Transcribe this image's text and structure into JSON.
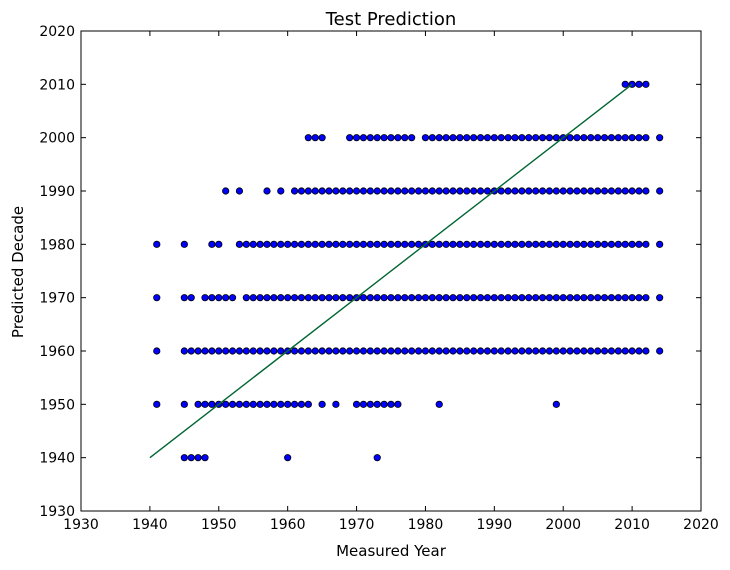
{
  "chart_data": {
    "type": "scatter",
    "title": "Test Prediction",
    "xlabel": "Measured Year",
    "ylabel": "Predicted Decade",
    "xlim": [
      1930,
      2020
    ],
    "ylim": [
      1930,
      2020
    ],
    "xticks": [
      1930,
      1940,
      1950,
      1960,
      1970,
      1980,
      1990,
      2000,
      2010,
      2020
    ],
    "yticks": [
      1930,
      1940,
      1950,
      1960,
      1970,
      1980,
      1990,
      2000,
      2010,
      2020
    ],
    "grid": false,
    "marker_color": "#0000ff",
    "line_color": "#006633",
    "series": [
      {
        "type": "scatter",
        "points_by_decade": {
          "1940": [
            1945,
            1946,
            1947,
            1948,
            1960,
            1973
          ],
          "1950": [
            1941,
            1945,
            1947,
            1948,
            1949,
            1950,
            1951,
            1952,
            1953,
            1954,
            1955,
            1956,
            1957,
            1958,
            1959,
            1960,
            1961,
            1962,
            1963,
            1965,
            1967,
            1970,
            1971,
            1972,
            1973,
            1974,
            1975,
            1976,
            1982,
            1999
          ],
          "1960": [
            1941,
            1945,
            1946,
            1947,
            1948,
            1949,
            1950,
            1951,
            1952,
            1953,
            1954,
            1955,
            1956,
            1957,
            1958,
            1959,
            1960,
            1961,
            1962,
            1963,
            1964,
            1965,
            1966,
            1967,
            1968,
            1969,
            1970,
            1971,
            1972,
            1973,
            1974,
            1975,
            1976,
            1977,
            1978,
            1979,
            1980,
            1981,
            1982,
            1983,
            1984,
            1985,
            1986,
            1987,
            1988,
            1989,
            1990,
            1991,
            1992,
            1993,
            1994,
            1995,
            1996,
            1997,
            1998,
            1999,
            2000,
            2001,
            2002,
            2003,
            2004,
            2005,
            2006,
            2007,
            2008,
            2009,
            2010,
            2011,
            2012,
            2014
          ],
          "1970": [
            1941,
            1945,
            1946,
            1948,
            1949,
            1950,
            1951,
            1952,
            1954,
            1955,
            1956,
            1957,
            1958,
            1959,
            1960,
            1961,
            1962,
            1963,
            1964,
            1965,
            1966,
            1967,
            1968,
            1969,
            1970,
            1971,
            1972,
            1973,
            1974,
            1975,
            1976,
            1977,
            1978,
            1979,
            1980,
            1981,
            1982,
            1983,
            1984,
            1985,
            1986,
            1987,
            1988,
            1989,
            1990,
            1991,
            1992,
            1993,
            1994,
            1995,
            1996,
            1997,
            1998,
            1999,
            2000,
            2001,
            2002,
            2003,
            2004,
            2005,
            2006,
            2007,
            2008,
            2009,
            2010,
            2011,
            2012,
            2014
          ],
          "1980": [
            1941,
            1945,
            1949,
            1950,
            1953,
            1954,
            1955,
            1956,
            1957,
            1958,
            1959,
            1960,
            1961,
            1962,
            1963,
            1964,
            1965,
            1966,
            1967,
            1968,
            1969,
            1970,
            1971,
            1972,
            1973,
            1974,
            1975,
            1976,
            1977,
            1978,
            1979,
            1980,
            1981,
            1982,
            1983,
            1984,
            1985,
            1986,
            1987,
            1988,
            1989,
            1990,
            1991,
            1992,
            1993,
            1994,
            1995,
            1996,
            1997,
            1998,
            1999,
            2000,
            2001,
            2002,
            2003,
            2004,
            2005,
            2006,
            2007,
            2008,
            2009,
            2010,
            2011,
            2012,
            2014
          ],
          "1990": [
            1951,
            1953,
            1957,
            1959,
            1961,
            1962,
            1963,
            1964,
            1965,
            1966,
            1967,
            1968,
            1969,
            1970,
            1971,
            1972,
            1973,
            1974,
            1975,
            1976,
            1977,
            1978,
            1979,
            1980,
            1981,
            1982,
            1983,
            1984,
            1985,
            1986,
            1987,
            1988,
            1989,
            1990,
            1991,
            1992,
            1993,
            1994,
            1995,
            1996,
            1997,
            1998,
            1999,
            2000,
            2001,
            2002,
            2003,
            2004,
            2005,
            2006,
            2007,
            2008,
            2009,
            2010,
            2011,
            2012,
            2014
          ],
          "2000": [
            1963,
            1964,
            1965,
            1969,
            1970,
            1971,
            1972,
            1973,
            1974,
            1975,
            1976,
            1977,
            1978,
            1980,
            1981,
            1982,
            1983,
            1984,
            1985,
            1986,
            1987,
            1988,
            1989,
            1990,
            1991,
            1992,
            1993,
            1994,
            1995,
            1996,
            1997,
            1998,
            1999,
            2000,
            2001,
            2002,
            2003,
            2004,
            2005,
            2006,
            2007,
            2008,
            2009,
            2010,
            2011,
            2012,
            2014
          ],
          "2010": [
            2009,
            2010,
            2011,
            2012
          ]
        }
      },
      {
        "type": "line",
        "x": [
          1940,
          2010
        ],
        "y": [
          1940,
          2010
        ]
      }
    ]
  }
}
